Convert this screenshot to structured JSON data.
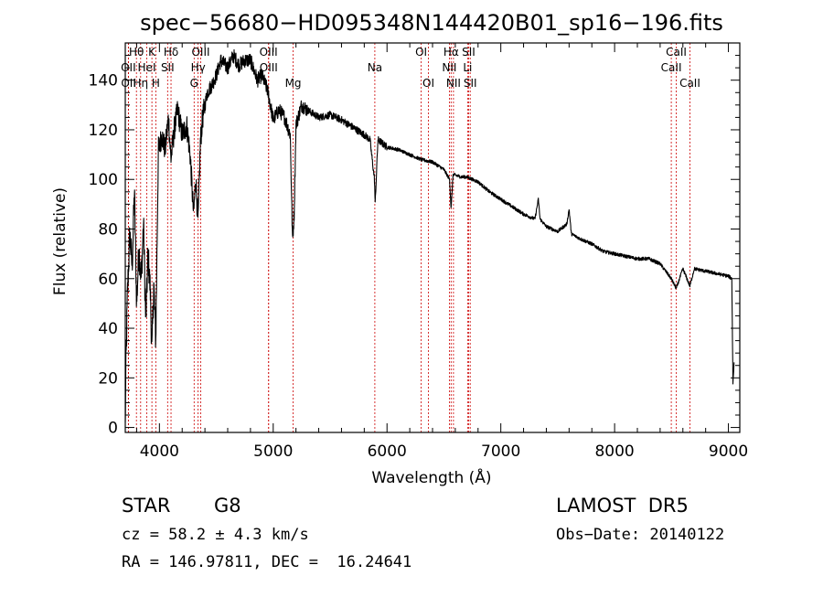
{
  "chart_data": {
    "type": "line",
    "title": "spec−56680−HD095348N144420B01_sp16−196.fits",
    "xlabel": "Wavelength (Å)",
    "ylabel": "Flux (relative)",
    "xlim": [
      3700,
      9100
    ],
    "ylim": [
      -2,
      155
    ],
    "xticks": [
      4000,
      5000,
      6000,
      7000,
      8000,
      9000
    ],
    "yticks": [
      0,
      20,
      40,
      60,
      80,
      100,
      120,
      140
    ],
    "line_color": "#000000",
    "marker_color": "#cc0000",
    "spectrum_anchors": [
      [
        3700,
        0
      ],
      [
        3705,
        22
      ],
      [
        3720,
        55
      ],
      [
        3740,
        78
      ],
      [
        3760,
        65
      ],
      [
        3780,
        95
      ],
      [
        3800,
        50
      ],
      [
        3820,
        72
      ],
      [
        3840,
        60
      ],
      [
        3860,
        82
      ],
      [
        3880,
        42
      ],
      [
        3900,
        70
      ],
      [
        3920,
        55
      ],
      [
        3934,
        30
      ],
      [
        3950,
        58
      ],
      [
        3968,
        35
      ],
      [
        3990,
        110
      ],
      [
        4020,
        118
      ],
      [
        4050,
        112
      ],
      [
        4080,
        125
      ],
      [
        4101,
        108
      ],
      [
        4130,
        120
      ],
      [
        4160,
        128
      ],
      [
        4200,
        118
      ],
      [
        4240,
        122
      ],
      [
        4270,
        110
      ],
      [
        4300,
        86
      ],
      [
        4320,
        100
      ],
      [
        4340,
        82
      ],
      [
        4360,
        115
      ],
      [
        4380,
        125
      ],
      [
        4420,
        135
      ],
      [
        4460,
        138
      ],
      [
        4500,
        142
      ],
      [
        4540,
        148
      ],
      [
        4600,
        145
      ],
      [
        4650,
        150
      ],
      [
        4700,
        146
      ],
      [
        4750,
        148
      ],
      [
        4800,
        148
      ],
      [
        4861,
        140
      ],
      [
        4900,
        142
      ],
      [
        4950,
        136
      ],
      [
        5000,
        124
      ],
      [
        5050,
        128
      ],
      [
        5100,
        125
      ],
      [
        5150,
        118
      ],
      [
        5170,
        75
      ],
      [
        5184,
        86
      ],
      [
        5200,
        122
      ],
      [
        5250,
        130
      ],
      [
        5300,
        128
      ],
      [
        5400,
        125
      ],
      [
        5500,
        126
      ],
      [
        5600,
        124
      ],
      [
        5700,
        121
      ],
      [
        5800,
        118
      ],
      [
        5850,
        116
      ],
      [
        5890,
        100
      ],
      [
        5896,
        90
      ],
      [
        5920,
        116
      ],
      [
        6000,
        113
      ],
      [
        6100,
        112
      ],
      [
        6200,
        110
      ],
      [
        6300,
        108
      ],
      [
        6400,
        107
      ],
      [
        6500,
        104
      ],
      [
        6550,
        100
      ],
      [
        6563,
        88
      ],
      [
        6580,
        102
      ],
      [
        6650,
        101
      ],
      [
        6700,
        101
      ],
      [
        6800,
        99
      ],
      [
        6900,
        95
      ],
      [
        7000,
        92
      ],
      [
        7100,
        89
      ],
      [
        7200,
        86
      ],
      [
        7300,
        84
      ],
      [
        7330,
        92
      ],
      [
        7345,
        84
      ],
      [
        7400,
        81
      ],
      [
        7500,
        79
      ],
      [
        7580,
        82
      ],
      [
        7600,
        88
      ],
      [
        7620,
        78
      ],
      [
        7700,
        76
      ],
      [
        7800,
        74
      ],
      [
        7900,
        71
      ],
      [
        8000,
        70
      ],
      [
        8100,
        69
      ],
      [
        8200,
        68
      ],
      [
        8300,
        68
      ],
      [
        8400,
        66
      ],
      [
        8498,
        60
      ],
      [
        8542,
        56
      ],
      [
        8600,
        64
      ],
      [
        8662,
        57
      ],
      [
        8700,
        64
      ],
      [
        8800,
        63
      ],
      [
        8900,
        62
      ],
      [
        9000,
        61
      ],
      [
        9030,
        60
      ],
      [
        9040,
        18
      ],
      [
        9050,
        26
      ]
    ],
    "lines": [
      {
        "label": "Hθ",
        "wave": 3798,
        "row": 0
      },
      {
        "label": "OII",
        "wave": 3727,
        "row": 1
      },
      {
        "label": "OII",
        "wave": 3729,
        "row": 2
      },
      {
        "label": "Hη",
        "wave": 3835,
        "row": 2
      },
      {
        "label": "HeI",
        "wave": 3889,
        "row": 1
      },
      {
        "label": "K",
        "wave": 3934,
        "row": 0
      },
      {
        "label": "H",
        "wave": 3968,
        "row": 2
      },
      {
        "label": "SII",
        "wave": 4072,
        "row": 1
      },
      {
        "label": "Hδ",
        "wave": 4102,
        "row": 0
      },
      {
        "label": "Hγ",
        "wave": 4340,
        "row": 1
      },
      {
        "label": "G",
        "wave": 4305,
        "row": 2
      },
      {
        "label": "OIII",
        "wave": 4363,
        "row": 0
      },
      {
        "label": "OIII",
        "wave": 4959,
        "row": 0
      },
      {
        "label": "OIII",
        "wave": 4960,
        "row": 1
      },
      {
        "label": "Mg",
        "wave": 5175,
        "row": 2
      },
      {
        "label": "Na",
        "wave": 5893,
        "row": 1
      },
      {
        "label": "OI",
        "wave": 6300,
        "row": 0
      },
      {
        "label": "OI",
        "wave": 6364,
        "row": 2
      },
      {
        "label": "Hα",
        "wave": 6563,
        "row": 0
      },
      {
        "label": "NII",
        "wave": 6548,
        "row": 1
      },
      {
        "label": "NII",
        "wave": 6584,
        "row": 2
      },
      {
        "label": "SII",
        "wave": 6717,
        "row": 0
      },
      {
        "label": "Li",
        "wave": 6708,
        "row": 1
      },
      {
        "label": "SII",
        "wave": 6731,
        "row": 2
      },
      {
        "label": "CaII",
        "wave": 8542,
        "row": 0
      },
      {
        "label": "CaII",
        "wave": 8498,
        "row": 1
      },
      {
        "label": "CaII",
        "wave": 8662,
        "row": 2
      }
    ],
    "grid": false,
    "legend": "none"
  },
  "info": {
    "object_class": "STAR",
    "subclass": "G8",
    "survey": "LAMOST  DR5",
    "cz": "cz = 58.2 ± 4.3 km/s",
    "obs_date": "Obs−Date: 20140122",
    "radec": "RA = 146.97811, DEC =  16.24641"
  }
}
